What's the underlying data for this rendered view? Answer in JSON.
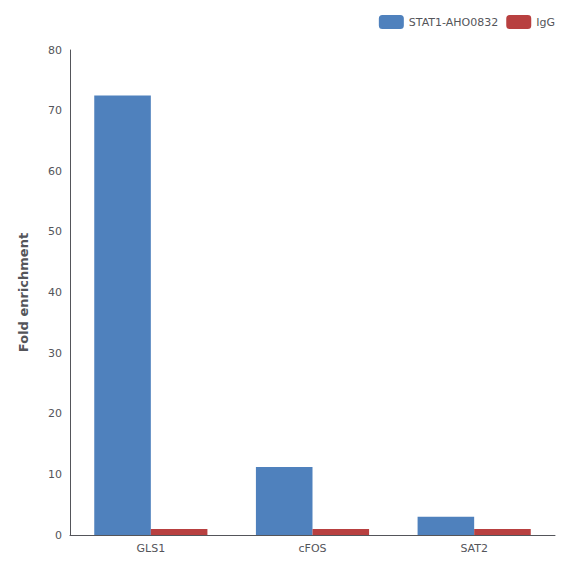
{
  "chart_data": {
    "type": "bar",
    "ylabel": "Fold enrichment",
    "categories": [
      "GLS1",
      "cFOS",
      "SAT2"
    ],
    "series": [
      {
        "name": "STAT1-AHO0832",
        "color": "#4F81BD",
        "values": [
          72.5,
          11.2,
          3.0
        ]
      },
      {
        "name": "IgG",
        "color": "#B84040",
        "values": [
          1.0,
          1.0,
          1.0
        ]
      }
    ],
    "ylim": [
      0,
      80
    ],
    "yticks": [
      0,
      10,
      20,
      30,
      40,
      50,
      60,
      70,
      80
    ],
    "grid": false,
    "legend": "upper right"
  }
}
